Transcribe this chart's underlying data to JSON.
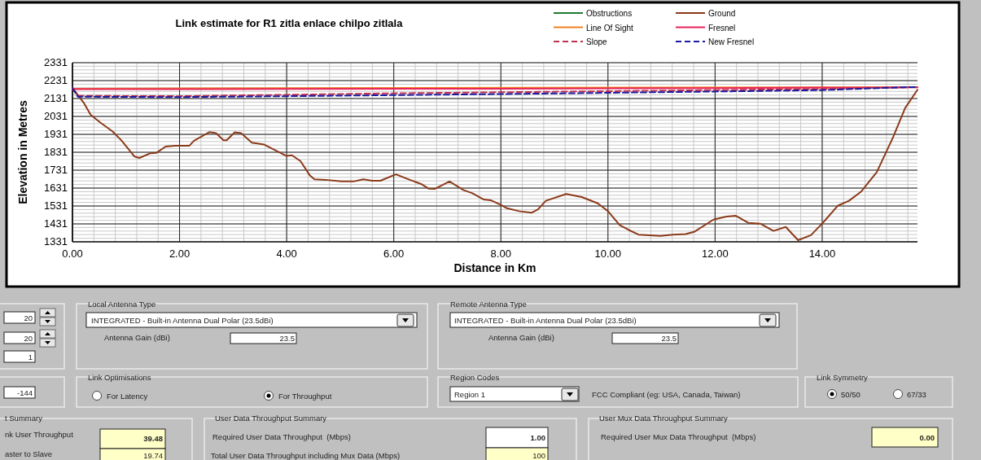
{
  "chart_data": [
    {
      "type": "line",
      "title": "Link estimate for R1 zitla enlace chilpo zitlala",
      "xlabel": "Distance in Km",
      "ylabel": "Elevation in Metres",
      "xlim": [
        0,
        15.78
      ],
      "ylim": [
        1331,
        2331
      ],
      "xticks": [
        {
          "value": 0,
          "label": "0.00"
        },
        {
          "value": 2,
          "label": "2.00"
        },
        {
          "value": 4,
          "label": "4.00"
        },
        {
          "value": 6,
          "label": "6.00"
        },
        {
          "value": 8,
          "label": "8.00"
        },
        {
          "value": 10,
          "label": "10.00"
        },
        {
          "value": 12,
          "label": "12.00"
        },
        {
          "value": 14,
          "label": "14.00"
        }
      ],
      "yticks": [
        1331,
        1431,
        1531,
        1631,
        1731,
        1831,
        1931,
        2031,
        2131,
        2231,
        2331
      ],
      "grid": true,
      "legend": "top right",
      "marker": "none",
      "series": [
        {
          "name": "Obstructions",
          "color": "#1e7a32",
          "line_style": "solid"
        },
        {
          "name": "Ground",
          "color": "#8b3a1a",
          "line_style": "solid",
          "x": [
            0,
            0.22,
            0.34,
            0.51,
            0.75,
            0.92,
            1.16,
            1.25,
            1.45,
            1.57,
            1.74,
            1.92,
            2.18,
            2.27,
            2.56,
            2.68,
            2.82,
            2.88,
            3.03,
            3.15,
            3.35,
            3.58,
            3.79,
            3.99,
            4.1,
            4.26,
            4.43,
            4.52,
            4.73,
            5.02,
            5.25,
            5.43,
            5.6,
            5.75,
            6.04,
            6.3,
            6.51,
            6.65,
            6.77,
            7.04,
            7.3,
            7.47,
            7.68,
            7.81,
            8.0,
            8.1,
            8.34,
            8.57,
            8.69,
            8.84,
            9.22,
            9.51,
            9.81,
            10.0,
            10.22,
            10.39,
            10.57,
            10.98,
            11.21,
            11.45,
            11.62,
            11.97,
            12.21,
            12.39,
            12.62,
            12.85,
            13.09,
            13.32,
            13.55,
            13.79,
            14.01,
            14.29,
            14.5,
            14.73,
            15.02,
            15.32,
            15.55,
            15.78
          ],
          "values": [
            2191,
            2103,
            2040,
            1999,
            1947,
            1895,
            1807,
            1799,
            1825,
            1828,
            1863,
            1867,
            1867,
            1895,
            1944,
            1938,
            1898,
            1898,
            1942,
            1938,
            1884,
            1874,
            1842,
            1811,
            1814,
            1781,
            1703,
            1680,
            1677,
            1668,
            1668,
            1680,
            1672,
            1672,
            1708,
            1677,
            1654,
            1628,
            1627,
            1668,
            1620,
            1602,
            1567,
            1563,
            1537,
            1520,
            1502,
            1493,
            1511,
            1560,
            1598,
            1581,
            1546,
            1502,
            1424,
            1397,
            1371,
            1364,
            1371,
            1374,
            1388,
            1455,
            1472,
            1476,
            1437,
            1432,
            1392,
            1414,
            1340,
            1368,
            1436,
            1532,
            1560,
            1612,
            1720,
            1912,
            2078,
            2180
          ]
        },
        {
          "name": "Line Of Sight",
          "color": "#f08020",
          "line_style": "solid",
          "x": [
            0,
            15.78
          ],
          "values": [
            2186,
            2195
          ]
        },
        {
          "name": "Fresnel",
          "color": "#e8245a",
          "line_style": "solid",
          "x": [
            0,
            4,
            8,
            12,
            15.78
          ],
          "values": [
            2183,
            2184,
            2186,
            2189,
            2194
          ]
        },
        {
          "name": "Slope",
          "color": "#c03050",
          "line_style": "dashed",
          "x": [
            0,
            0.1,
            2,
            4,
            6,
            8,
            10,
            12,
            14,
            15.5,
            15.78
          ],
          "values": [
            2185,
            2146,
            2144,
            2152,
            2160,
            2166,
            2172,
            2178,
            2184,
            2193,
            2195
          ]
        },
        {
          "name": "New Fresnel",
          "color": "#1a1aa0",
          "line_style": "dashed",
          "x": [
            0,
            0.1,
            2,
            4,
            6,
            8,
            10,
            12,
            14,
            15.5,
            15.78
          ],
          "values": [
            2190,
            2141,
            2139,
            2144,
            2150,
            2156,
            2163,
            2170,
            2178,
            2194,
            2195
          ]
        }
      ]
    },
    {
      "type": "other",
      "annotations": [
        "20",
        "20",
        "1",
        "-144",
        "Local Antenna Type",
        "INTEGRATED - Built-in Antenna Dual Polar (23.5dBi)",
        "Antenna Gain (dBi)",
        "23.5",
        "Remote Antenna Type",
        "INTEGRATED - Built-in Antenna Dual Polar (23.5dBi)",
        "Antenna Gain (dBi)",
        "23.5",
        "Link Optimisations",
        "For Latency",
        "For Throughput",
        "Region Codes",
        "Region 1",
        "FCC Compliant (eg: USA, Canada, Taiwan)",
        "Link Symmetry",
        "50/50",
        "67/33",
        "t Summary",
        "nk User Throughput",
        "39.48",
        "aster to Slave",
        "19.74",
        "User Data Throughput Summary",
        "Required User Data Throughput  (Mbps)",
        "1.00",
        "Total User Data Throughput including Mux Data (Mbps)",
        "100",
        "User Mux Data Throughput Summary",
        "Required User Mux Data Throughput  (Mbps)",
        "0.00"
      ]
    }
  ]
}
